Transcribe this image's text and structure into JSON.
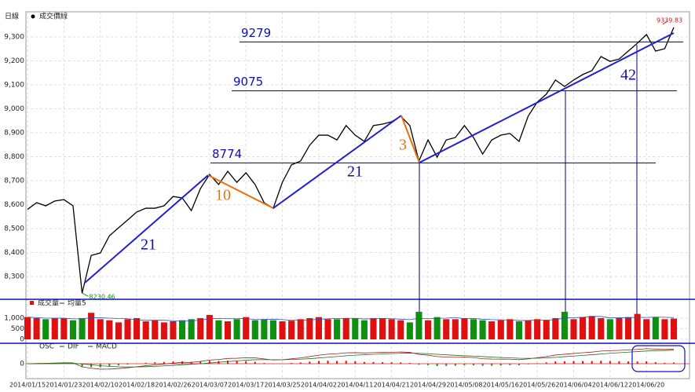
{
  "chart_data": {
    "type": "line",
    "period_label": "日線",
    "series": [
      {
        "name": "成交價線",
        "color": "#000000",
        "values": [
          8580,
          8608,
          8595,
          8615,
          8621,
          8595,
          8230.46,
          8388,
          8398,
          8470,
          8503,
          8536,
          8569,
          8585,
          8585,
          8595,
          8634,
          8628,
          8575,
          8667,
          8726,
          8684,
          8739,
          8693,
          8733,
          8684,
          8608,
          8585,
          8693,
          8766,
          8782,
          8848,
          8890,
          8890,
          8870,
          8930,
          8890,
          8864,
          8930,
          8936,
          8946,
          8969,
          8930,
          8782,
          8870,
          8798,
          8870,
          8880,
          8930,
          8880,
          8811,
          8870,
          8890,
          8897,
          8864,
          8969,
          9028,
          9061,
          9120,
          9093,
          9120,
          9143,
          9159,
          9218,
          9198,
          9208,
          9241,
          9274,
          9310,
          9241,
          9251,
          9339.83
        ]
      }
    ],
    "categories": [
      "2014/01/15",
      null,
      null,
      null,
      "2014/01/23",
      null,
      null,
      null,
      "2014/02/10",
      null,
      null,
      null,
      "2014/02/18",
      null,
      null,
      null,
      "2014/02/26",
      null,
      null,
      null,
      "2014/03/07",
      null,
      null,
      null,
      "2014/03/17",
      null,
      null,
      null,
      "2014/03/25",
      null,
      null,
      null,
      "2014/04/02",
      null,
      null,
      null,
      "2014/04/11",
      null,
      null,
      null,
      "2014/04/21",
      null,
      null,
      null,
      "2014/04/29",
      null,
      null,
      null,
      "2014/05/08",
      null,
      null,
      null,
      "2014/05/16",
      null,
      null,
      null,
      "2014/05/26",
      null,
      null,
      null,
      "2014/06/04",
      null,
      null,
      null,
      "2014/06/12",
      null,
      null,
      null,
      "2014/06/20",
      null,
      null,
      null
    ],
    "ylim": [
      8208,
      9405
    ],
    "yticks": [
      {
        "value": 8300,
        "label": "8,300"
      },
      {
        "value": 8400,
        "label": "8,400"
      },
      {
        "value": 8500,
        "label": "8,500"
      },
      {
        "value": 8600,
        "label": "8,600"
      },
      {
        "value": 8700,
        "label": "8,700"
      },
      {
        "value": 8800,
        "label": "8,800"
      },
      {
        "value": 8900,
        "label": "8,900"
      },
      {
        "value": 9000,
        "label": "9,000"
      },
      {
        "value": 9100,
        "label": "9,100"
      },
      {
        "value": 9200,
        "label": "9,200"
      },
      {
        "value": 9300,
        "label": "9,300"
      }
    ],
    "grid": true,
    "levels": [
      9279,
      9075,
      8774
    ],
    "level_color": "#000080",
    "wave_counts": [
      21,
      10,
      21,
      3,
      42
    ],
    "wave_colors": [
      "#1f1fd8",
      "#e8700a",
      "#1f1fd8",
      "#e8700a",
      "#1f1fd8"
    ],
    "volume": {
      "name": "成交量",
      "avg_name": "均量5",
      "up_color": "#e01010",
      "down_color": "#109010",
      "values": [
        1050,
        1000,
        950,
        1000,
        980,
        900,
        1000,
        1250,
        950,
        900,
        800,
        950,
        1000,
        850,
        900,
        800,
        850,
        900,
        950,
        1000,
        1150,
        900,
        850,
        950,
        1050,
        900,
        950,
        900,
        850,
        880,
        950,
        1000,
        1050,
        950,
        950,
        1000,
        1000,
        900,
        1000,
        1000,
        950,
        900,
        800,
        1300,
        900,
        1050,
        950,
        950,
        1000,
        950,
        900,
        850,
        900,
        950,
        850,
        900,
        950,
        900,
        1000,
        1300,
        950,
        1050,
        1100,
        1000,
        950,
        1000,
        1050,
        1200,
        950,
        1050,
        950,
        980
      ],
      "ylim": [
        0,
        1850
      ],
      "yticks": [
        0,
        500,
        {
          "value": 1000,
          "label": "1,000"
        }
      ]
    },
    "macd": {
      "osc_name": "OSC",
      "dif_name": "DIF",
      "macd_name": "MACD",
      "ylim": [
        -110,
        110
      ],
      "yticks": [
        0
      ]
    }
  }
}
